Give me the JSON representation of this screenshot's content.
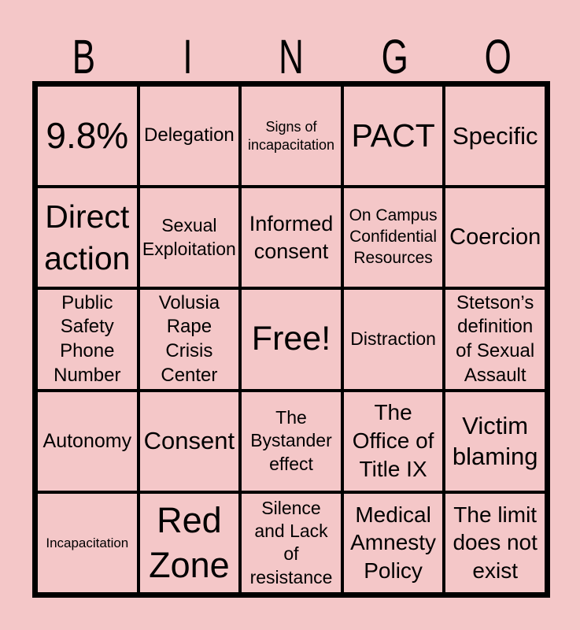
{
  "title_letters": [
    "B",
    "I",
    "N",
    "G",
    "O"
  ],
  "colors": {
    "page_background": "#f4c7c8",
    "grid_line": "#000000",
    "text": "#000000"
  },
  "card": {
    "rows": [
      [
        {
          "text": "9.8%",
          "font_px": 46
        },
        {
          "text": "Delegation",
          "font_px": 24
        },
        {
          "text": "Signs of\nincapacitation",
          "font_px": 18
        },
        {
          "text": "PACT",
          "font_px": 41
        },
        {
          "text": "Specific",
          "font_px": 31
        }
      ],
      [
        {
          "text": "Direct\naction",
          "font_px": 41
        },
        {
          "text": "Sexual\nExploitation",
          "font_px": 23
        },
        {
          "text": "Informed\nconsent",
          "font_px": 27
        },
        {
          "text": "On Campus\nConfidential\nResources",
          "font_px": 21
        },
        {
          "text": "Coercion",
          "font_px": 29
        }
      ],
      [
        {
          "text": "Public\nSafety\nPhone\nNumber",
          "font_px": 24
        },
        {
          "text": "Volusia\nRape\nCrisis\nCenter",
          "font_px": 24
        },
        {
          "text": "Free!",
          "font_px": 43
        },
        {
          "text": "Distraction",
          "font_px": 23
        },
        {
          "text": "Stetson’s\ndefinition\nof Sexual\nAssault",
          "font_px": 24
        }
      ],
      [
        {
          "text": "Autonomy",
          "font_px": 25
        },
        {
          "text": "Consent",
          "font_px": 31
        },
        {
          "text": "The\nBystander\neffect",
          "font_px": 23
        },
        {
          "text": "The\nOffice of\nTitle IX",
          "font_px": 28
        },
        {
          "text": "Victim\nblaming",
          "font_px": 31
        }
      ],
      [
        {
          "text": "Incapacitation",
          "font_px": 17
        },
        {
          "text": "Red\nZone",
          "font_px": 45
        },
        {
          "text": "Silence\nand Lack\nof\nresistance",
          "font_px": 23
        },
        {
          "text": "Medical\nAmnesty\nPolicy",
          "font_px": 28
        },
        {
          "text": "The limit\ndoes not\nexist",
          "font_px": 28
        }
      ]
    ]
  }
}
